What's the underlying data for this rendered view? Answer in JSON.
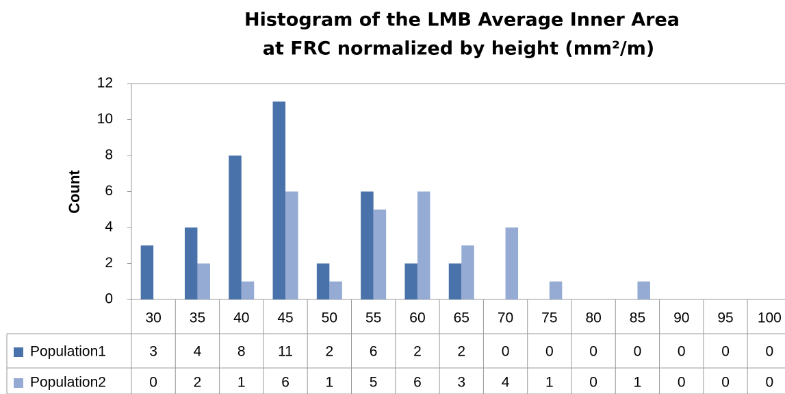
{
  "chart_data": {
    "type": "bar",
    "title": [
      "Histogram of the LMB Average Inner Area",
      "at FRC normalized by height (mm²/m)"
    ],
    "y_label": "Count",
    "categories": [
      "30",
      "35",
      "40",
      "45",
      "50",
      "55",
      "60",
      "65",
      "70",
      "75",
      "80",
      "85",
      "90",
      "95",
      "100"
    ],
    "series": [
      {
        "name": "Population1",
        "color": "#4a72aa",
        "values": [
          3,
          4,
          8,
          11,
          2,
          6,
          2,
          2,
          0,
          0,
          0,
          0,
          0,
          0,
          0
        ]
      },
      {
        "name": "Population2",
        "color": "#95abd3",
        "values": [
          0,
          2,
          1,
          6,
          1,
          5,
          6,
          3,
          4,
          1,
          0,
          1,
          0,
          0,
          0
        ]
      }
    ],
    "ylim": [
      0,
      12
    ],
    "yticks": [
      0,
      2,
      4,
      6,
      8,
      10,
      12
    ],
    "grid": false,
    "data_table": true
  }
}
